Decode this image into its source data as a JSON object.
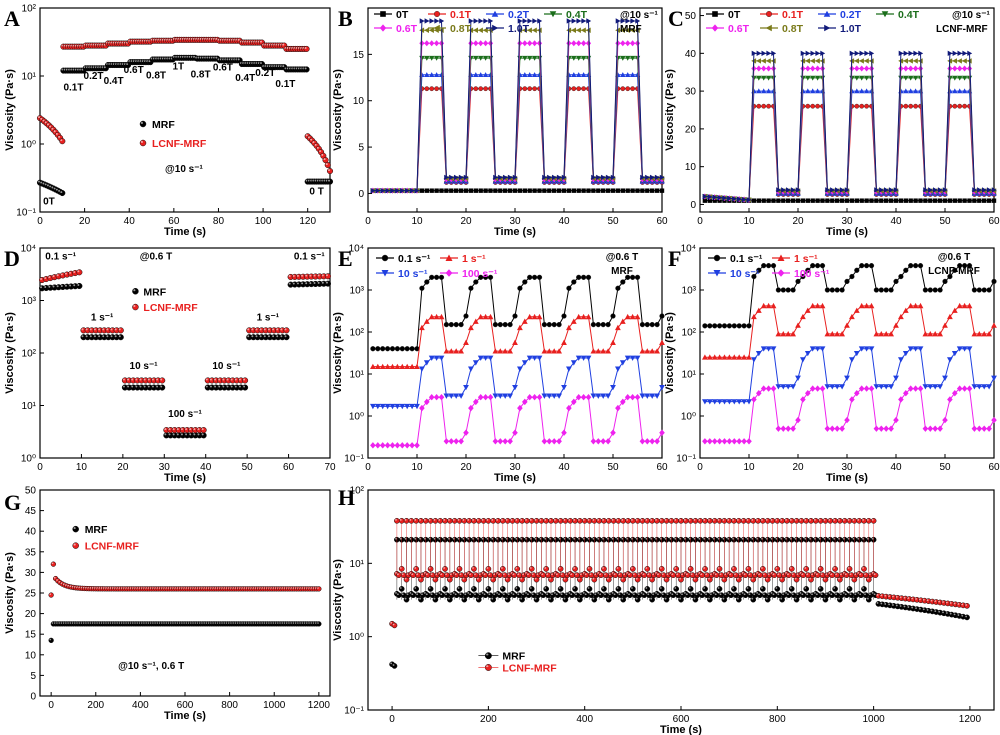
{
  "colors": {
    "black": "#000000",
    "red": "#e8201f",
    "blue": "#1f3fe0",
    "green": "#1b6e1b",
    "magenta": "#ee22ee",
    "olive": "#7a7a1a",
    "navy": "#111a7a"
  },
  "chart_data": [
    {
      "id": "A",
      "panel_label": "A",
      "type": "scatter",
      "xlabel": "Time (s)",
      "ylabel": "Viscosity (Pa·s)",
      "xlim": [
        0,
        130
      ],
      "ylim": [
        0.1,
        100
      ],
      "yscale": "log",
      "xticks": [
        0,
        20,
        40,
        60,
        80,
        100,
        120
      ],
      "yticks": [
        0.1,
        1,
        10,
        100
      ],
      "ytick_labels": [
        "10⁻¹",
        "10⁰",
        "10¹",
        "10²"
      ],
      "annotation": "@10 s⁻¹",
      "field_labels": [
        "0T",
        "0.1T",
        "0.2T",
        "0.4T",
        "0.6T",
        "0.8T",
        "1T",
        "0.8T",
        "0.6T",
        "0.4T",
        "0.2T",
        "0.1T",
        "0 T"
      ],
      "legend": [
        "MRF",
        "LCNF-MRF"
      ],
      "series": [
        {
          "name": "MRF",
          "color": "black",
          "segments": [
            [
              0,
              10,
              0.27,
              0.19
            ],
            [
              10,
              120,
              12.5,
              12.5
            ],
            [
              120,
              130,
              0.28,
              0.28
            ]
          ],
          "steps": [
            [
              10,
              20,
              12
            ],
            [
              20,
              30,
              13
            ],
            [
              30,
              40,
              14.5
            ],
            [
              40,
              50,
              16
            ],
            [
              50,
              60,
              17.5
            ],
            [
              60,
              70,
              18.5
            ],
            [
              70,
              80,
              18
            ],
            [
              80,
              90,
              17
            ],
            [
              90,
              100,
              15
            ],
            [
              100,
              110,
              13.5
            ],
            [
              110,
              120,
              12.5
            ]
          ]
        },
        {
          "name": "LCNF-MRF",
          "color": "red",
          "segments": [
            [
              0,
              10,
              2.4,
              1.1
            ],
            [
              120,
              130,
              1.3,
              0.4
            ]
          ],
          "steps": [
            [
              10,
              20,
              27
            ],
            [
              20,
              30,
              28
            ],
            [
              30,
              40,
              30
            ],
            [
              40,
              50,
              32
            ],
            [
              50,
              60,
              33
            ],
            [
              60,
              70,
              34
            ],
            [
              70,
              80,
              34
            ],
            [
              80,
              90,
              33
            ],
            [
              90,
              100,
              31
            ],
            [
              100,
              110,
              28
            ],
            [
              110,
              120,
              25
            ]
          ]
        }
      ]
    },
    {
      "id": "B",
      "panel_label": "B",
      "type": "line",
      "xlabel": "Time (s)",
      "ylabel": "Viscosity (Pa·s)",
      "xlim": [
        0,
        60
      ],
      "ylim": [
        -2,
        20
      ],
      "xticks": [
        0,
        10,
        20,
        30,
        40,
        50,
        60
      ],
      "yticks": [
        0,
        5,
        10,
        15
      ],
      "annotation": [
        "@10 s⁻¹",
        "MRF"
      ],
      "legend_note": "0T 0.1T 0.2T 0.4T 0.6T 0.8T 1.0T",
      "off_baseline": 1.8,
      "series": [
        {
          "name": "0T",
          "color": "black",
          "marker": "square",
          "on": 0.3
        },
        {
          "name": "0.1T",
          "color": "red",
          "marker": "circle",
          "on": 11.3
        },
        {
          "name": "0.2T",
          "color": "blue",
          "marker": "triangle",
          "on": 12.8
        },
        {
          "name": "0.4T",
          "color": "green",
          "marker": "tri-down",
          "on": 14.6
        },
        {
          "name": "0.6T",
          "color": "magenta",
          "marker": "diamond",
          "on": 16.2
        },
        {
          "name": "0.8T",
          "color": "olive",
          "marker": "tri-left",
          "on": 17.6
        },
        {
          "name": "1.0T",
          "color": "navy",
          "marker": "tri-right",
          "on": 18.6
        }
      ]
    },
    {
      "id": "C",
      "panel_label": "C",
      "type": "line",
      "xlabel": "Time (s)",
      "ylabel": "Viscosity (Pa·s)",
      "xlim": [
        0,
        60
      ],
      "ylim": [
        -2,
        52
      ],
      "xticks": [
        0,
        10,
        20,
        30,
        40,
        50,
        60
      ],
      "yticks": [
        0,
        10,
        20,
        30,
        40,
        50
      ],
      "annotation": [
        "@10 s⁻¹",
        "LCNF-MRF"
      ],
      "off_baseline": 4,
      "series": [
        {
          "name": "0T",
          "color": "black",
          "marker": "square",
          "on": 1.0
        },
        {
          "name": "0.1T",
          "color": "red",
          "marker": "circle",
          "on": 26
        },
        {
          "name": "0.2T",
          "color": "blue",
          "marker": "triangle",
          "on": 30
        },
        {
          "name": "0.4T",
          "color": "green",
          "marker": "tri-down",
          "on": 33.5
        },
        {
          "name": "0.6T",
          "color": "magenta",
          "marker": "diamond",
          "on": 36
        },
        {
          "name": "0.8T",
          "color": "olive",
          "marker": "tri-left",
          "on": 38
        },
        {
          "name": "1.0T",
          "color": "navy",
          "marker": "tri-right",
          "on": 40
        }
      ]
    },
    {
      "id": "D",
      "panel_label": "D",
      "type": "scatter",
      "xlabel": "Time (s)",
      "ylabel": "Viscosity (Pa·s)",
      "xlim": [
        0,
        70
      ],
      "ylim": [
        1,
        10000
      ],
      "yscale": "log",
      "xticks": [
        0,
        10,
        20,
        30,
        40,
        50,
        60,
        70
      ],
      "yticks": [
        1,
        10,
        100,
        1000,
        10000
      ],
      "ytick_labels": [
        "10⁰",
        "10¹",
        "10²",
        "10³",
        "10⁴"
      ],
      "annotation": "@0.6 T",
      "rate_labels": [
        "0.1 s⁻¹",
        "1 s⁻¹",
        "10 s⁻¹",
        "100 s⁻¹",
        "10 s⁻¹",
        "1 s⁻¹",
        "0.1 s⁻¹"
      ],
      "legend": [
        "MRF",
        "LCNF-MRF"
      ],
      "series": [
        {
          "name": "MRF",
          "color": "black",
          "steps": [
            [
              0,
              10,
              1700,
              1900
            ],
            [
              10,
              20,
              200,
              200
            ],
            [
              20,
              30,
              22,
              22
            ],
            [
              30,
              40,
              2.7,
              2.7
            ],
            [
              40,
              50,
              22,
              22
            ],
            [
              50,
              60,
              200,
              200
            ],
            [
              60,
              70,
              2000,
              2100
            ]
          ]
        },
        {
          "name": "LCNF-MRF",
          "color": "red",
          "steps": [
            [
              0,
              10,
              2400,
              3500
            ],
            [
              10,
              20,
              270,
              270
            ],
            [
              20,
              30,
              30,
              30
            ],
            [
              30,
              40,
              3.4,
              3.4
            ],
            [
              40,
              50,
              30,
              30
            ],
            [
              50,
              60,
              270,
              270
            ],
            [
              60,
              70,
              2800,
              2900
            ]
          ]
        }
      ]
    },
    {
      "id": "E",
      "panel_label": "E",
      "type": "line",
      "xlabel": "Time (s)",
      "ylabel": "Viscosity (Pa·s)",
      "xlim": [
        0,
        60
      ],
      "ylim": [
        0.1,
        10000
      ],
      "yscale": "log",
      "xticks": [
        0,
        10,
        20,
        30,
        40,
        50,
        60
      ],
      "yticks": [
        0.1,
        1,
        10,
        100,
        1000,
        10000
      ],
      "ytick_labels": [
        "10⁻¹",
        "10⁰",
        "10¹",
        "10²",
        "10³",
        "10⁴"
      ],
      "annotation": [
        "@0.6 T",
        "MRF"
      ],
      "series": [
        {
          "name": "0.1 s⁻¹",
          "color": "black",
          "marker": "circle",
          "base": 40,
          "on": 2000,
          "off": 150
        },
        {
          "name": "1 s⁻¹",
          "color": "red",
          "marker": "triangle",
          "base": 15,
          "on": 230,
          "off": 35
        },
        {
          "name": "10 s⁻¹",
          "color": "blue",
          "marker": "tri-down",
          "base": 1.7,
          "on": 24,
          "off": 3
        },
        {
          "name": "100 s⁻¹",
          "color": "magenta",
          "marker": "diamond",
          "base": 0.2,
          "on": 2.8,
          "off": 0.25
        }
      ]
    },
    {
      "id": "F",
      "panel_label": "F",
      "type": "line",
      "xlabel": "Time (s)",
      "ylabel": "Viscosity (Pa·s)",
      "xlim": [
        0,
        60
      ],
      "ylim": [
        0.1,
        10000
      ],
      "yscale": "log",
      "xticks": [
        0,
        10,
        20,
        30,
        40,
        50,
        60
      ],
      "yticks": [
        0.1,
        1,
        10,
        100,
        1000,
        10000
      ],
      "ytick_labels": [
        "10⁻¹",
        "10⁰",
        "10¹",
        "10²",
        "10³",
        "10⁴"
      ],
      "annotation": [
        "@0.6 T",
        "LCNF-MRF"
      ],
      "series": [
        {
          "name": "0.1 s⁻¹",
          "color": "black",
          "marker": "circle",
          "base": 140,
          "on": 3800,
          "off": 1000
        },
        {
          "name": "1 s⁻¹",
          "color": "red",
          "marker": "triangle",
          "base": 25,
          "on": 420,
          "off": 90
        },
        {
          "name": "10 s⁻¹",
          "color": "blue",
          "marker": "tri-down",
          "base": 2.2,
          "on": 40,
          "off": 5
        },
        {
          "name": "100 s⁻¹",
          "color": "magenta",
          "marker": "diamond",
          "base": 0.25,
          "on": 4.5,
          "off": 0.5
        }
      ]
    },
    {
      "id": "G",
      "panel_label": "G",
      "type": "scatter",
      "xlabel": "Time (s)",
      "ylabel": "Viscosity (Pa·s)",
      "xlim": [
        -50,
        1250
      ],
      "ylim": [
        0,
        50
      ],
      "xticks": [
        0,
        200,
        400,
        600,
        800,
        1000,
        1200
      ],
      "yticks": [
        0,
        5,
        10,
        15,
        20,
        25,
        30,
        35,
        40,
        45,
        50
      ],
      "annotation": "@10 s⁻¹, 0.6 T",
      "legend": [
        "MRF",
        "LCNF-MRF"
      ],
      "series": [
        {
          "name": "MRF",
          "color": "black",
          "first": [
            0,
            13.5
          ],
          "plateau": 17.5
        },
        {
          "name": "LCNF-MRF",
          "color": "red",
          "first": [
            0,
            24.5
          ],
          "peak": [
            10,
            32
          ],
          "plateau": 26
        }
      ]
    },
    {
      "id": "H",
      "panel_label": "H",
      "type": "scatter",
      "xlabel": "Time (s)",
      "ylabel": "Viscosity (Pa·s)",
      "xlim": [
        -50,
        1250
      ],
      "ylim": [
        0.1,
        100
      ],
      "yscale": "log",
      "xticks": [
        0,
        200,
        400,
        600,
        800,
        1000,
        1200
      ],
      "yticks": [
        0.1,
        1,
        10,
        100
      ],
      "ytick_labels": [
        "10⁻¹",
        "10⁰",
        "10¹",
        "10²"
      ],
      "legend": [
        "MRF",
        "LCNF-MRF"
      ],
      "series": [
        {
          "name": "MRF",
          "color": "black",
          "start": 0.42,
          "high": 21,
          "low": 3.2,
          "tail_from": 2.8,
          "tail_to": 1.8
        },
        {
          "name": "LCNF-MRF",
          "color": "red",
          "start": 1.5,
          "high": 38,
          "low": 6,
          "tail_from": 3.6,
          "tail_to": 2.6
        }
      ]
    }
  ]
}
